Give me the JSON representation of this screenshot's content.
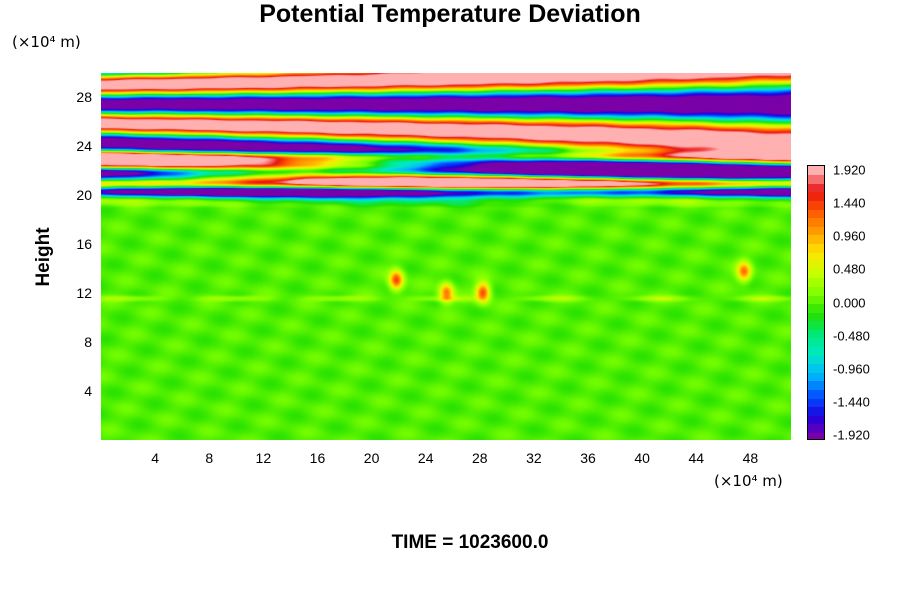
{
  "figure": {
    "title": "Potential Temperature Deviation",
    "time_label": "TIME = 1023600.0"
  },
  "chart_data": {
    "type": "heatmap",
    "title": "Potential Temperature Deviation",
    "xlabel": "",
    "ylabel": "Height",
    "x_unit": "(×10⁴ m)",
    "y_unit": "(×10⁴ m)",
    "x_ticks": [
      "4",
      "8",
      "12",
      "16",
      "20",
      "24",
      "28",
      "32",
      "36",
      "40",
      "44",
      "48"
    ],
    "x_tick_values": [
      4,
      8,
      12,
      16,
      20,
      24,
      28,
      32,
      36,
      40,
      44,
      48
    ],
    "y_ticks": [
      "28",
      "24",
      "20",
      "16",
      "12",
      "8",
      "4"
    ],
    "y_tick_values": [
      28,
      24,
      20,
      16,
      12,
      8,
      4
    ],
    "xlim": [
      0,
      51
    ],
    "ylim": [
      0,
      30
    ],
    "colorbar": {
      "labels": [
        "1.920",
        "1.440",
        "0.960",
        "0.480",
        "0.000",
        "-0.480",
        "-0.960",
        "-1.440",
        "-1.920"
      ],
      "values": [
        1.92,
        1.44,
        0.96,
        0.48,
        0.0,
        -0.48,
        -0.96,
        -1.44,
        -1.92
      ],
      "range": [
        -1.92,
        1.92
      ],
      "colors": [
        "#7a00a8",
        "#1e00e0",
        "#0050ff",
        "#00b4ff",
        "#00e8c8",
        "#00e87a",
        "#22e000",
        "#7cff00",
        "#c8ff00",
        "#ffe600",
        "#ffa000",
        "#ff5a00",
        "#e81414",
        "#ffb0b0"
      ]
    },
    "features": [
      {
        "kind": "flat band",
        "y": 20.3,
        "value": -1.92
      },
      {
        "kind": "flat band",
        "y": 21.0,
        "value": 1.92
      },
      {
        "kind": "flat band",
        "y": 22.0,
        "value": -1.92
      },
      {
        "kind": "flat band",
        "y": 23.2,
        "value": 1.92
      },
      {
        "kind": "wave region",
        "y_range": [
          19,
          30
        ],
        "amplitude": 1.92
      },
      {
        "kind": "warm blob",
        "x": 21.8,
        "y": 13.1,
        "value": 1.44
      },
      {
        "kind": "warm blob",
        "x": 28.2,
        "y": 12.1,
        "value": 1.44
      },
      {
        "kind": "warm blob",
        "x": 25.5,
        "y": 12.1,
        "value": 1.2
      },
      {
        "kind": "warm blob",
        "x": 47.5,
        "y": 13.8,
        "value": 1.2
      }
    ],
    "background_value": 0.0
  }
}
